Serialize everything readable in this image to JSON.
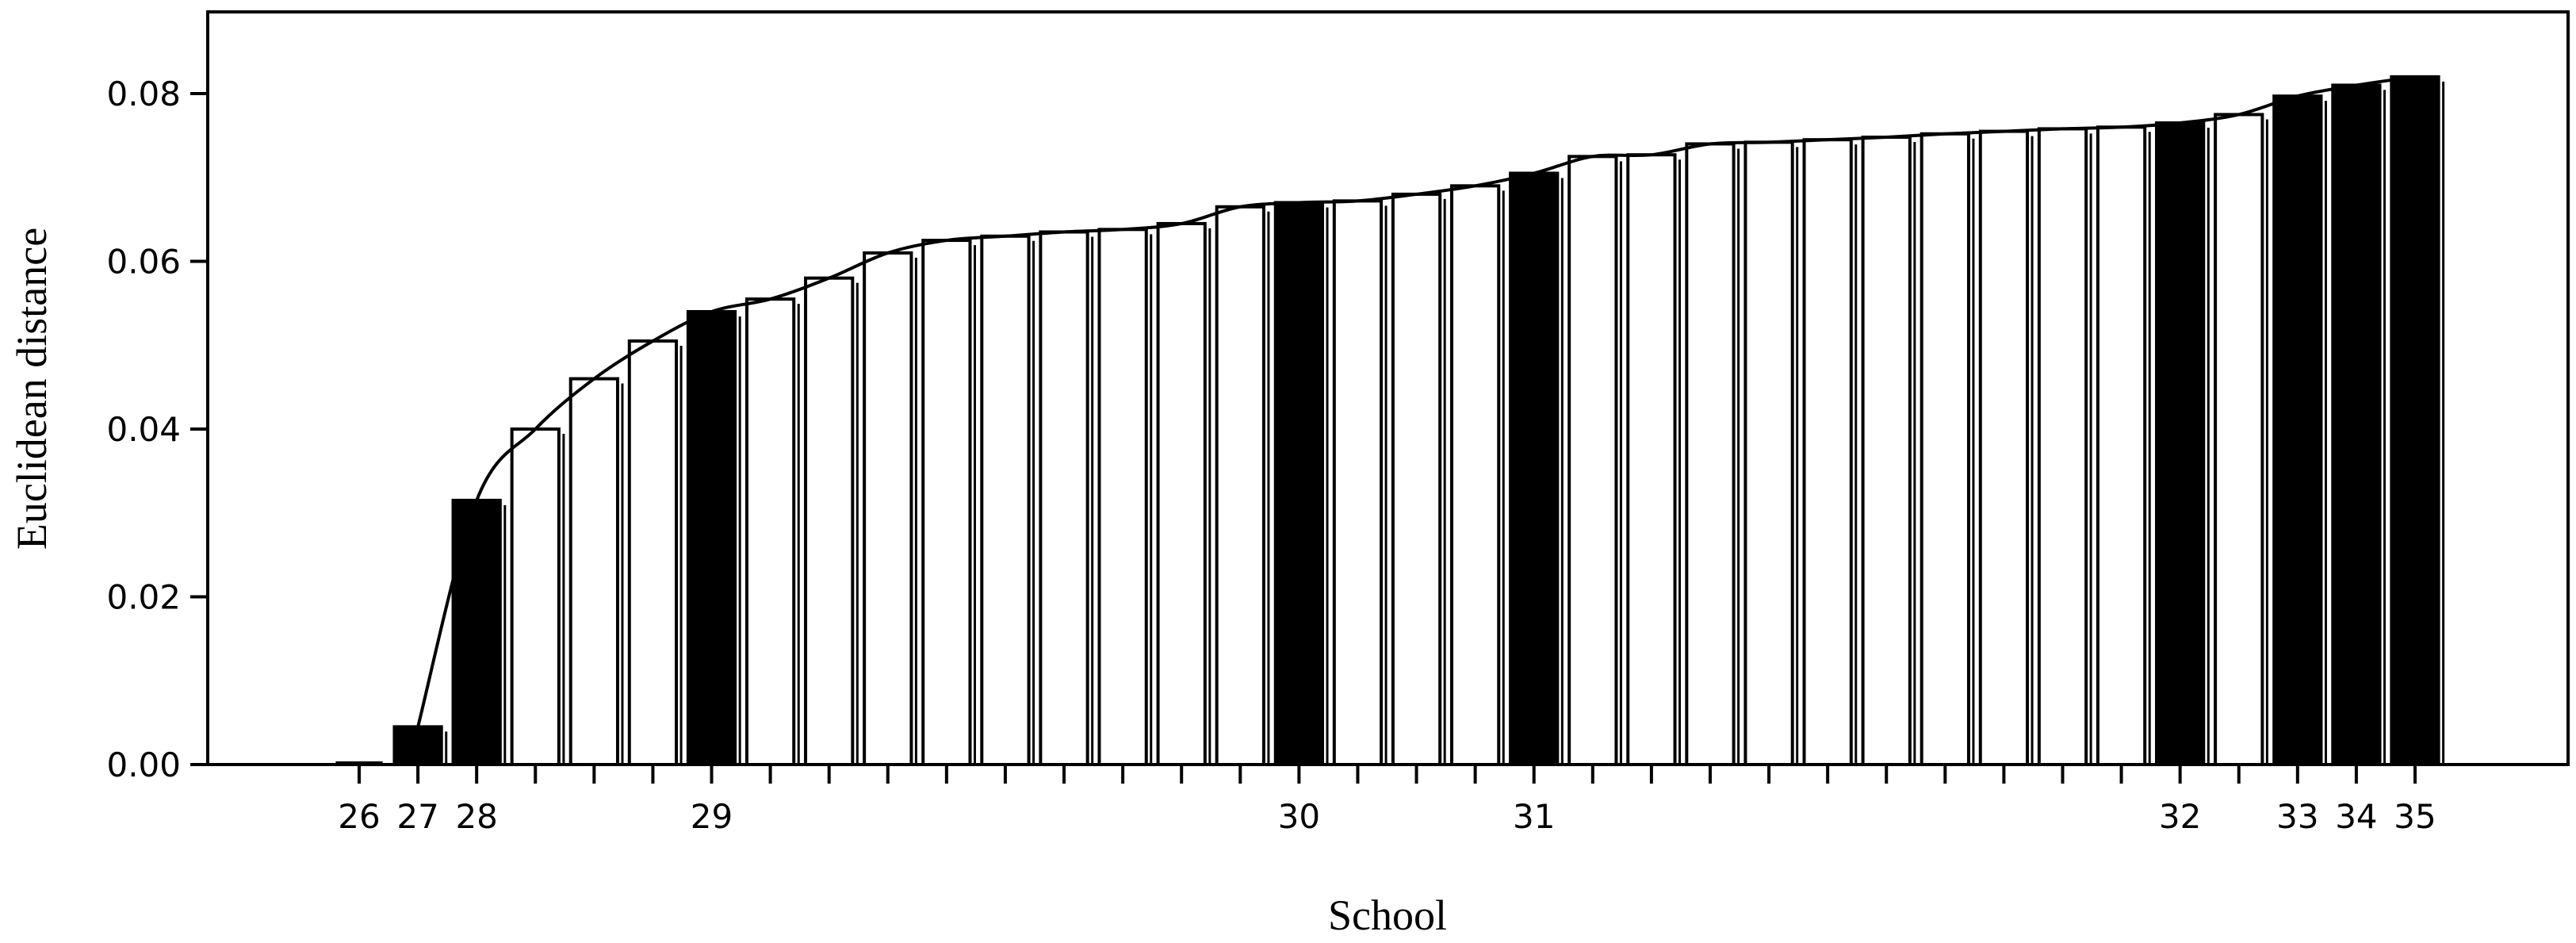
{
  "chart_data": {
    "type": "bar",
    "xlabel": "School",
    "ylabel": "Euclidean distance",
    "ylim": [
      0,
      0.09
    ],
    "yticks": [
      "0.00",
      "0.02",
      "0.04",
      "0.06",
      "0.08"
    ],
    "grid": false,
    "legend": "none",
    "colors": {
      "highlight": "#000000",
      "other": "#ffffff",
      "stroke": "#000000"
    },
    "bars": [
      {
        "label": "26",
        "value": 0.0,
        "highlight": true
      },
      {
        "label": "27",
        "value": 0.0045,
        "highlight": true
      },
      {
        "label": "28",
        "value": 0.0315,
        "highlight": true
      },
      {
        "label": "",
        "value": 0.04,
        "highlight": false
      },
      {
        "label": "",
        "value": 0.046,
        "highlight": false
      },
      {
        "label": "",
        "value": 0.0505,
        "highlight": false
      },
      {
        "label": "29",
        "value": 0.054,
        "highlight": true
      },
      {
        "label": "",
        "value": 0.0555,
        "highlight": false
      },
      {
        "label": "",
        "value": 0.058,
        "highlight": false
      },
      {
        "label": "",
        "value": 0.061,
        "highlight": false
      },
      {
        "label": "",
        "value": 0.0625,
        "highlight": false
      },
      {
        "label": "",
        "value": 0.063,
        "highlight": false
      },
      {
        "label": "",
        "value": 0.0635,
        "highlight": false
      },
      {
        "label": "",
        "value": 0.0638,
        "highlight": false
      },
      {
        "label": "",
        "value": 0.0645,
        "highlight": false
      },
      {
        "label": "",
        "value": 0.0665,
        "highlight": false
      },
      {
        "label": "30",
        "value": 0.067,
        "highlight": true
      },
      {
        "label": "",
        "value": 0.0672,
        "highlight": false
      },
      {
        "label": "",
        "value": 0.068,
        "highlight": false
      },
      {
        "label": "",
        "value": 0.069,
        "highlight": false
      },
      {
        "label": "31",
        "value": 0.0705,
        "highlight": true
      },
      {
        "label": "",
        "value": 0.0725,
        "highlight": false
      },
      {
        "label": "",
        "value": 0.0727,
        "highlight": false
      },
      {
        "label": "",
        "value": 0.074,
        "highlight": false
      },
      {
        "label": "",
        "value": 0.0742,
        "highlight": false
      },
      {
        "label": "",
        "value": 0.0745,
        "highlight": false
      },
      {
        "label": "",
        "value": 0.0748,
        "highlight": false
      },
      {
        "label": "",
        "value": 0.0752,
        "highlight": false
      },
      {
        "label": "",
        "value": 0.0755,
        "highlight": false
      },
      {
        "label": "",
        "value": 0.0758,
        "highlight": false
      },
      {
        "label": "",
        "value": 0.076,
        "highlight": false
      },
      {
        "label": "32",
        "value": 0.0765,
        "highlight": true
      },
      {
        "label": "",
        "value": 0.0775,
        "highlight": false
      },
      {
        "label": "33",
        "value": 0.0797,
        "highlight": true
      },
      {
        "label": "34",
        "value": 0.081,
        "highlight": true
      },
      {
        "label": "35",
        "value": 0.082,
        "highlight": true
      }
    ]
  }
}
